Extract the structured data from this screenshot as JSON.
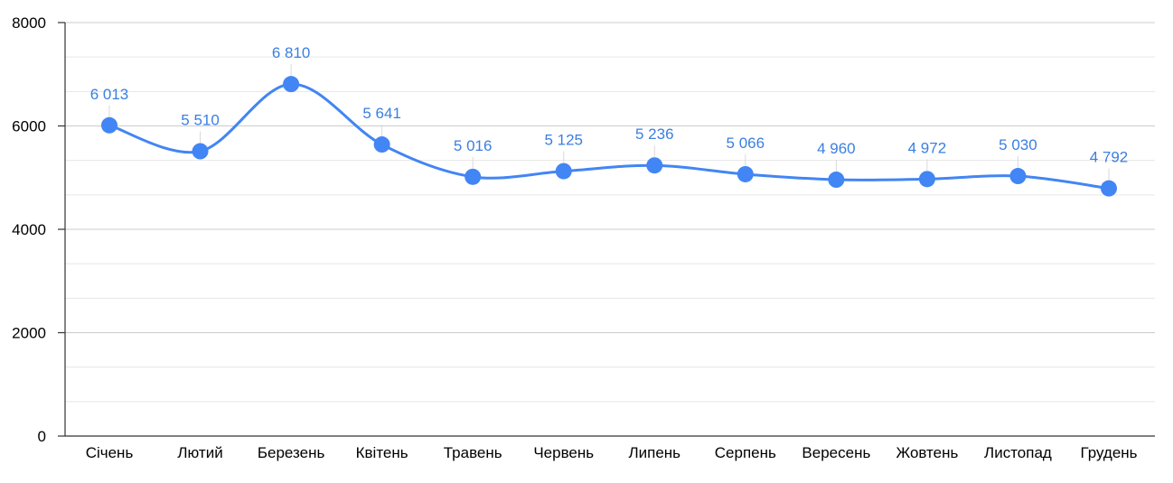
{
  "chart_data": {
    "type": "line",
    "title": "",
    "xlabel": "",
    "ylabel": "",
    "ylim": [
      0,
      8000
    ],
    "yticks": [
      0,
      2000,
      4000,
      6000,
      8000
    ],
    "grid": true,
    "smooth": true,
    "legend": "none",
    "line_color": "#4285f4",
    "label_color": "#3a7fe0",
    "categories": [
      "Січень",
      "Лютий",
      "Березень",
      "Квітень",
      "Травень",
      "Червень",
      "Липень",
      "Серпень",
      "Вересень",
      "Жовтень",
      "Листопад",
      "Грудень"
    ],
    "series": [
      {
        "values": [
          6013,
          5510,
          6810,
          5641,
          5016,
          5125,
          5236,
          5066,
          4960,
          4972,
          5030,
          4792
        ],
        "labels": [
          "6 013",
          "5 510",
          "6 810",
          "5 641",
          "5 016",
          "5 125",
          "5 236",
          "5 066",
          "4 960",
          "4 972",
          "5 030",
          "4 792"
        ]
      }
    ]
  }
}
